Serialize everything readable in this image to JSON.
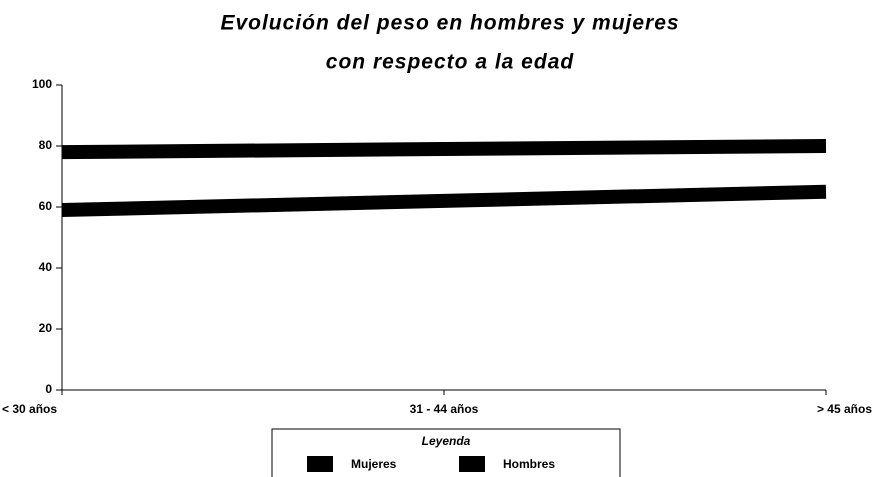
{
  "chart_data": {
    "type": "line",
    "title": [
      "Evolución del peso en hombres y mujeres",
      "con respecto a la edad"
    ],
    "categories": [
      "< 30 años",
      "31 - 44 años",
      "> 45 años"
    ],
    "series": [
      {
        "name": "Mujeres",
        "color": "#000000",
        "values": [
          59,
          62,
          65
        ]
      },
      {
        "name": "Hombres",
        "color": "#000000",
        "values": [
          78,
          79,
          80
        ]
      }
    ],
    "ylim": [
      0,
      100
    ],
    "yticks": [
      0,
      20,
      40,
      60,
      80,
      100
    ],
    "legend_title": "Leyenda",
    "legend": "bottom"
  }
}
